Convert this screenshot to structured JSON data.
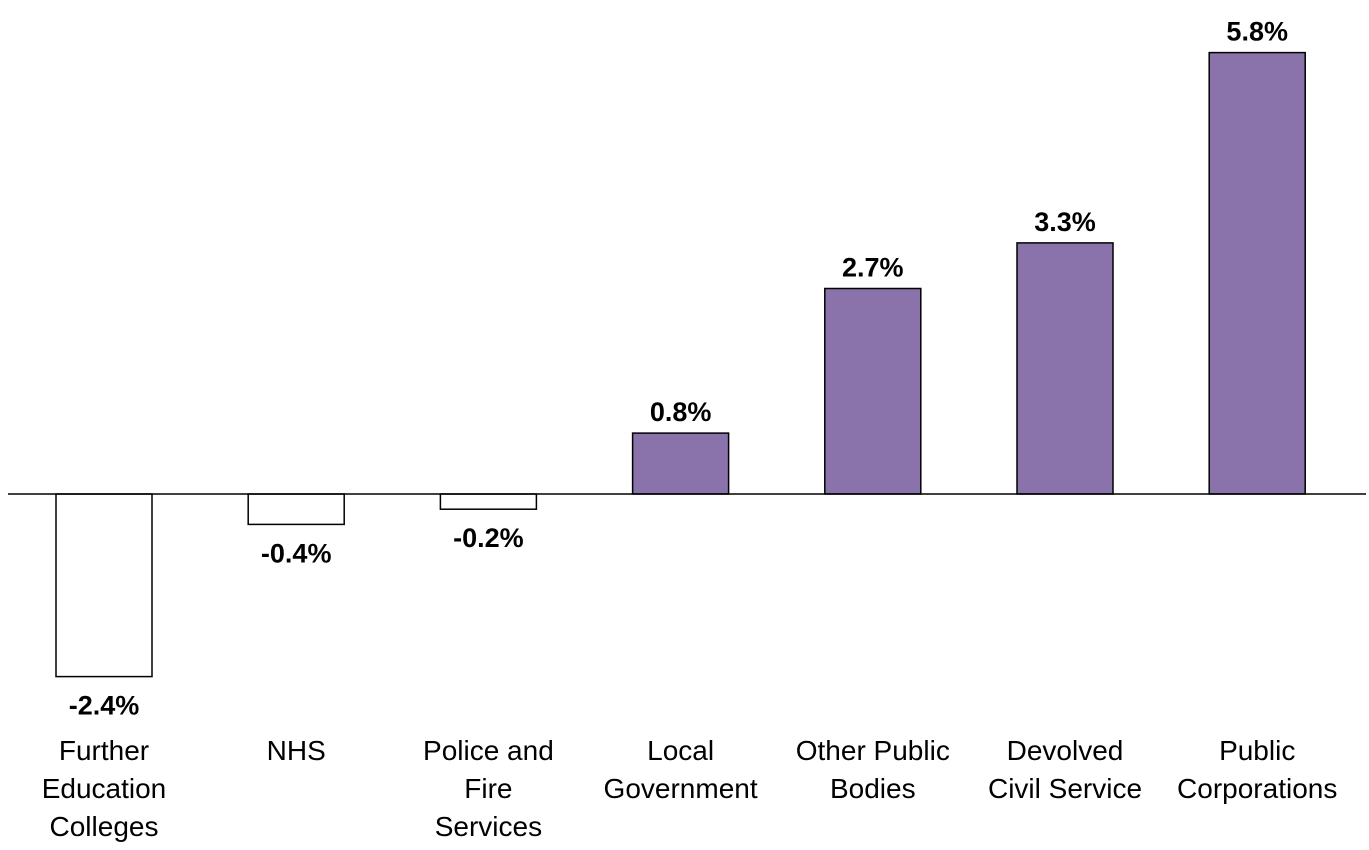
{
  "chart_data": {
    "type": "bar",
    "title": "",
    "xlabel": "",
    "ylabel": "",
    "categories": [
      "Further Education Colleges",
      "NHS",
      "Police and Fire Services",
      "Local Government",
      "Other Public Bodies",
      "Devolved Civil Service",
      "Public Corporations"
    ],
    "category_label_lines": [
      [
        "Further",
        "Education",
        "Colleges"
      ],
      [
        "NHS"
      ],
      [
        "Police and",
        "Fire",
        "Services"
      ],
      [
        "Local",
        "Government"
      ],
      [
        "Other Public",
        "Bodies"
      ],
      [
        "Devolved",
        "Civil Service"
      ],
      [
        "Public",
        "Corporations"
      ]
    ],
    "values": [
      -2.4,
      -0.4,
      -0.2,
      0.8,
      2.7,
      3.3,
      5.8
    ],
    "data_labels": [
      "-2.4%",
      "-0.4%",
      "-0.2%",
      "0.8%",
      "2.7%",
      "3.3%",
      "5.8%"
    ],
    "ylim": [
      -2.4,
      5.8
    ],
    "grid": false,
    "legend": "none",
    "colors": {
      "positive_fill": "#8a72ab",
      "negative_fill": "#ffffff",
      "bar_stroke": "#000000",
      "axis_line": "#000000"
    }
  }
}
